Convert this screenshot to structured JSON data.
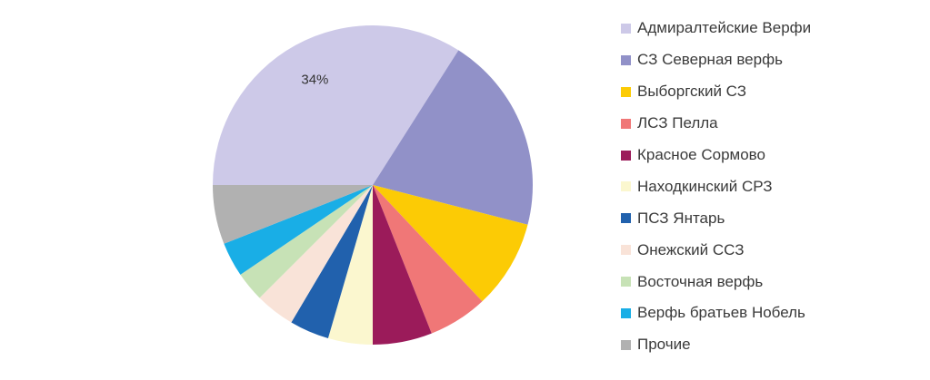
{
  "chart_data": {
    "type": "pie",
    "start_angle_deg": 180,
    "direction": "counterclockwise",
    "slices": [
      {
        "label": "Адмиралтейские Верфи",
        "value": 34,
        "color": "#cdc9e8",
        "value_label": "34%"
      },
      {
        "label": "СЗ Северная верфь",
        "value": 20,
        "color": "#9191c8",
        "value_label": ""
      },
      {
        "label": "Выборгский СЗ",
        "value": 9,
        "color": "#fccb05",
        "value_label": ""
      },
      {
        "label": "ЛСЗ Пелла",
        "value": 6,
        "color": "#f07777",
        "value_label": ""
      },
      {
        "label": "Красное Сормово",
        "value": 6,
        "color": "#9b1b5a",
        "value_label": ""
      },
      {
        "label": "Находкинский СРЗ",
        "value": 4.5,
        "color": "#fbf7cf",
        "value_label": ""
      },
      {
        "label": "ПСЗ Янтарь",
        "value": 4,
        "color": "#2161ad",
        "value_label": ""
      },
      {
        "label": "Онежский ССЗ",
        "value": 4,
        "color": "#f9e3d8",
        "value_label": ""
      },
      {
        "label": "Восточная верфь",
        "value": 3,
        "color": "#c7e2b6",
        "value_label": ""
      },
      {
        "label": "Верфь братьев Нобель",
        "value": 3.5,
        "color": "#19aee6",
        "value_label": ""
      },
      {
        "label": "Прочие",
        "value": 6,
        "color": "#b1b1b1",
        "value_label": ""
      }
    ],
    "legend_position": "right"
  }
}
